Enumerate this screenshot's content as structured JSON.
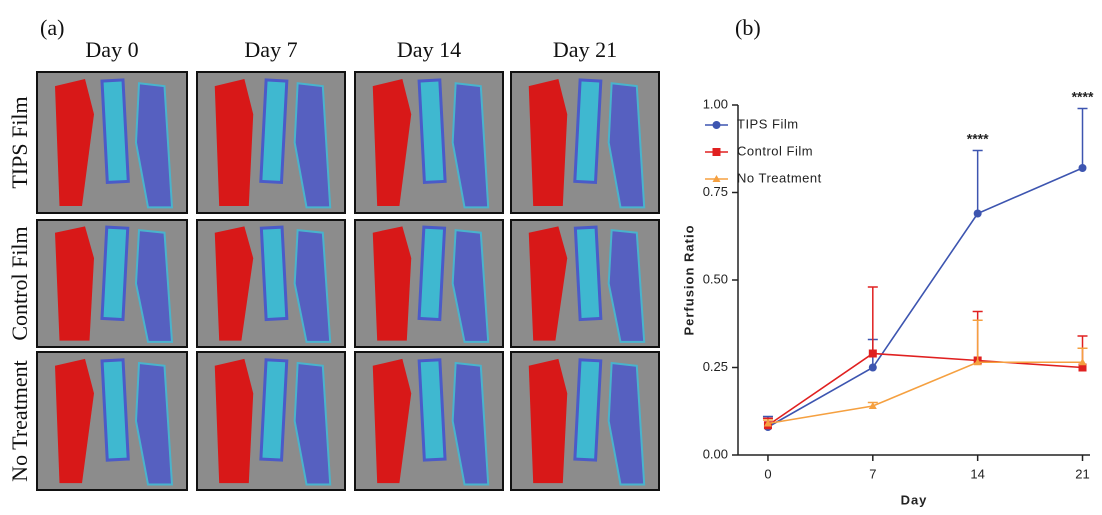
{
  "panel_a": {
    "label": "(a)",
    "columns": [
      "Day 0",
      "Day 7",
      "Day 14",
      "Day 21"
    ],
    "rows": [
      "TIPS Film",
      "Control Film",
      "No Treatment"
    ]
  },
  "panel_b_label": "(b)",
  "chart_data": {
    "type": "line",
    "x_label": "Day",
    "y_label": "Perfusion Ratio",
    "x": [
      0,
      7,
      14,
      21
    ],
    "xlim": [
      -2,
      21.5
    ],
    "xticks": [
      0,
      7,
      14,
      21
    ],
    "ylim": [
      0,
      1.0
    ],
    "yticks": [
      {
        "value": 0,
        "label": "0.00"
      },
      {
        "value": 0.25,
        "label": "0.25"
      },
      {
        "value": 0.5,
        "label": "0.50"
      },
      {
        "value": 0.75,
        "label": "0.75"
      },
      {
        "value": 1.0,
        "label": "1.00"
      }
    ],
    "legend": "upper-left",
    "series": [
      {
        "name": "TIPS Film",
        "color": "#3d55b0",
        "marker": "circle",
        "values": [
          0.08,
          0.25,
          0.69,
          0.82
        ],
        "errors": [
          0.03,
          0.08,
          0.18,
          0.17
        ]
      },
      {
        "name": "Control Film",
        "color": "#e02020",
        "marker": "square",
        "values": [
          0.085,
          0.29,
          0.27,
          0.25
        ],
        "errors": [
          0.02,
          0.19,
          0.14,
          0.09
        ]
      },
      {
        "name": "No Treatment",
        "color": "#f5a040",
        "marker": "triangle",
        "values": [
          0.09,
          0.14,
          0.265,
          0.265
        ],
        "errors": [
          0.01,
          0.01,
          0.12,
          0.04
        ]
      }
    ],
    "annotations": [
      {
        "text": "****",
        "x": 14,
        "y": 0.9
      },
      {
        "text": "****",
        "x": 21,
        "y": 1.02
      }
    ]
  }
}
